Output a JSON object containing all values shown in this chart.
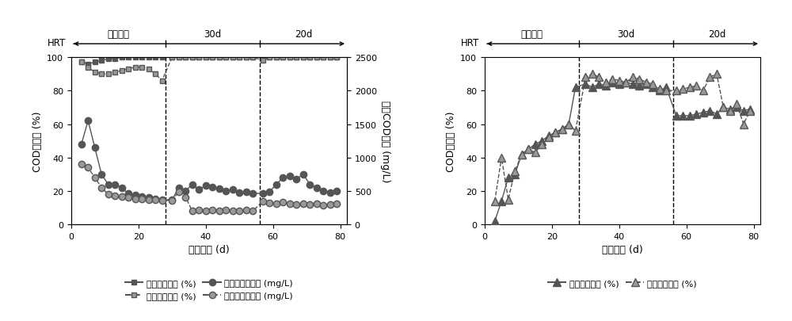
{
  "left": {
    "title_left": "COD去除率 (%)",
    "title_right": "出水COD浓度 (mg/L)",
    "xlabel": "运行时间 (d)",
    "hrt_label": "HRT",
    "phase_labels": [
      "启动阶段",
      "30d",
      "20d"
    ],
    "vlines": [
      28,
      56
    ],
    "xlim": [
      0,
      82
    ],
    "ylim_left": [
      0,
      100
    ],
    "ylim_right": [
      0,
      2500
    ],
    "xticks": [
      0,
      20,
      40,
      60,
      80
    ],
    "yticks_left": [
      0,
      20,
      40,
      60,
      80,
      100
    ],
    "yticks_right": [
      0,
      500,
      1000,
      1500,
      2000,
      2500
    ],
    "kongbai_removal_x": [
      3,
      5,
      7,
      9,
      11,
      13,
      15,
      17,
      19,
      21,
      23,
      25,
      27,
      30,
      32,
      34,
      36,
      38,
      40,
      42,
      44,
      46,
      48,
      50,
      52,
      54,
      57,
      59,
      61,
      63,
      65,
      67,
      69,
      71,
      73,
      75,
      77,
      79
    ],
    "kongbai_removal_y": [
      97,
      96,
      97,
      98,
      99,
      99,
      100,
      100,
      100,
      100,
      100,
      100,
      100,
      100,
      100,
      100,
      100,
      100,
      100,
      100,
      100,
      100,
      100,
      100,
      100,
      100,
      100,
      100,
      100,
      100,
      100,
      100,
      100,
      100,
      100,
      100,
      100,
      100
    ],
    "jiatan_removal_x": [
      3,
      5,
      7,
      9,
      11,
      13,
      15,
      17,
      19,
      21,
      23,
      25,
      27,
      30,
      32,
      34,
      36,
      38,
      40,
      42,
      44,
      46,
      48,
      50,
      52,
      54,
      57,
      59,
      61,
      63,
      65,
      67,
      69,
      71,
      73,
      75,
      77,
      79
    ],
    "jiatan_removal_y": [
      97,
      94,
      91,
      90,
      90,
      91,
      92,
      93,
      94,
      94,
      93,
      90,
      86,
      100,
      100,
      100,
      100,
      100,
      100,
      100,
      100,
      100,
      100,
      100,
      100,
      100,
      98,
      100,
      100,
      100,
      100,
      100,
      100,
      100,
      100,
      100,
      100,
      100
    ],
    "kongbai_conc_x": [
      3,
      5,
      7,
      9,
      11,
      13,
      15,
      17,
      19,
      21,
      23,
      25,
      27,
      30,
      32,
      34,
      36,
      38,
      40,
      42,
      44,
      46,
      48,
      50,
      52,
      54,
      57,
      59,
      61,
      63,
      65,
      67,
      69,
      71,
      73,
      75,
      77,
      79
    ],
    "kongbai_conc_y": [
      1200,
      1550,
      1150,
      750,
      600,
      600,
      550,
      460,
      440,
      420,
      400,
      380,
      370,
      370,
      550,
      500,
      600,
      520,
      580,
      560,
      540,
      500,
      520,
      480,
      490,
      470,
      460,
      490,
      600,
      700,
      720,
      680,
      750,
      600,
      550,
      500,
      480,
      500
    ],
    "jiatan_conc_x": [
      3,
      5,
      7,
      9,
      11,
      13,
      15,
      17,
      19,
      21,
      23,
      25,
      27,
      30,
      32,
      34,
      36,
      38,
      40,
      42,
      44,
      46,
      48,
      50,
      52,
      54,
      57,
      59,
      61,
      63,
      65,
      67,
      69,
      71,
      73,
      75,
      77,
      79
    ],
    "jiatan_conc_y": [
      900,
      850,
      700,
      550,
      450,
      430,
      420,
      400,
      380,
      380,
      370,
      370,
      360,
      360,
      490,
      410,
      200,
      220,
      200,
      210,
      200,
      210,
      200,
      200,
      210,
      200,
      350,
      320,
      310,
      330,
      310,
      300,
      310,
      300,
      310,
      290,
      300,
      310
    ],
    "legend_labels": [
      "空白组去除率 (%)",
      "加炭组去除率 (%)",
      "空白组出水浓度 (mg/L)",
      "加炭组出水浓度 (mg/L)"
    ]
  },
  "right": {
    "title_left": "COD截留率 (%)",
    "xlabel": "运行时间 (d)",
    "hrt_label": "HRT",
    "phase_labels": [
      "启动阶段",
      "30d",
      "20d"
    ],
    "vlines": [
      28,
      56
    ],
    "xlim": [
      0,
      82
    ],
    "ylim": [
      0,
      100
    ],
    "xticks": [
      0,
      20,
      40,
      60,
      80
    ],
    "yticks": [
      0,
      20,
      40,
      60,
      80,
      100
    ],
    "kongbai_ret_x": [
      3,
      5,
      7,
      9,
      11,
      13,
      15,
      17,
      19,
      21,
      23,
      25,
      27,
      30,
      32,
      34,
      36,
      38,
      40,
      42,
      44,
      46,
      48,
      50,
      52,
      54,
      57,
      59,
      61,
      63,
      65,
      67,
      69,
      71,
      73,
      75,
      77,
      79
    ],
    "kongbai_ret_y": [
      2,
      14,
      28,
      30,
      42,
      45,
      48,
      50,
      53,
      55,
      57,
      60,
      82,
      84,
      82,
      84,
      83,
      85,
      84,
      85,
      84,
      83,
      84,
      82,
      80,
      82,
      65,
      65,
      65,
      66,
      67,
      68,
      66,
      70,
      69,
      70,
      68,
      69
    ],
    "jiatan_ret_x": [
      3,
      5,
      7,
      9,
      11,
      13,
      15,
      17,
      19,
      21,
      23,
      25,
      27,
      30,
      32,
      34,
      36,
      38,
      40,
      42,
      44,
      46,
      48,
      50,
      52,
      54,
      57,
      59,
      61,
      63,
      65,
      67,
      69,
      71,
      73,
      75,
      77,
      79
    ],
    "jiatan_ret_y": [
      14,
      40,
      15,
      32,
      42,
      45,
      43,
      48,
      52,
      55,
      57,
      60,
      56,
      88,
      90,
      88,
      85,
      87,
      86,
      85,
      88,
      87,
      85,
      84,
      81,
      80,
      80,
      81,
      82,
      83,
      80,
      88,
      90,
      70,
      68,
      72,
      60,
      68
    ],
    "legend_labels": [
      "空白组截留率 (%)",
      "加炭组截留率 (%)"
    ]
  },
  "dark_color": "#555555",
  "light_color": "#999999",
  "background": "#ffffff"
}
